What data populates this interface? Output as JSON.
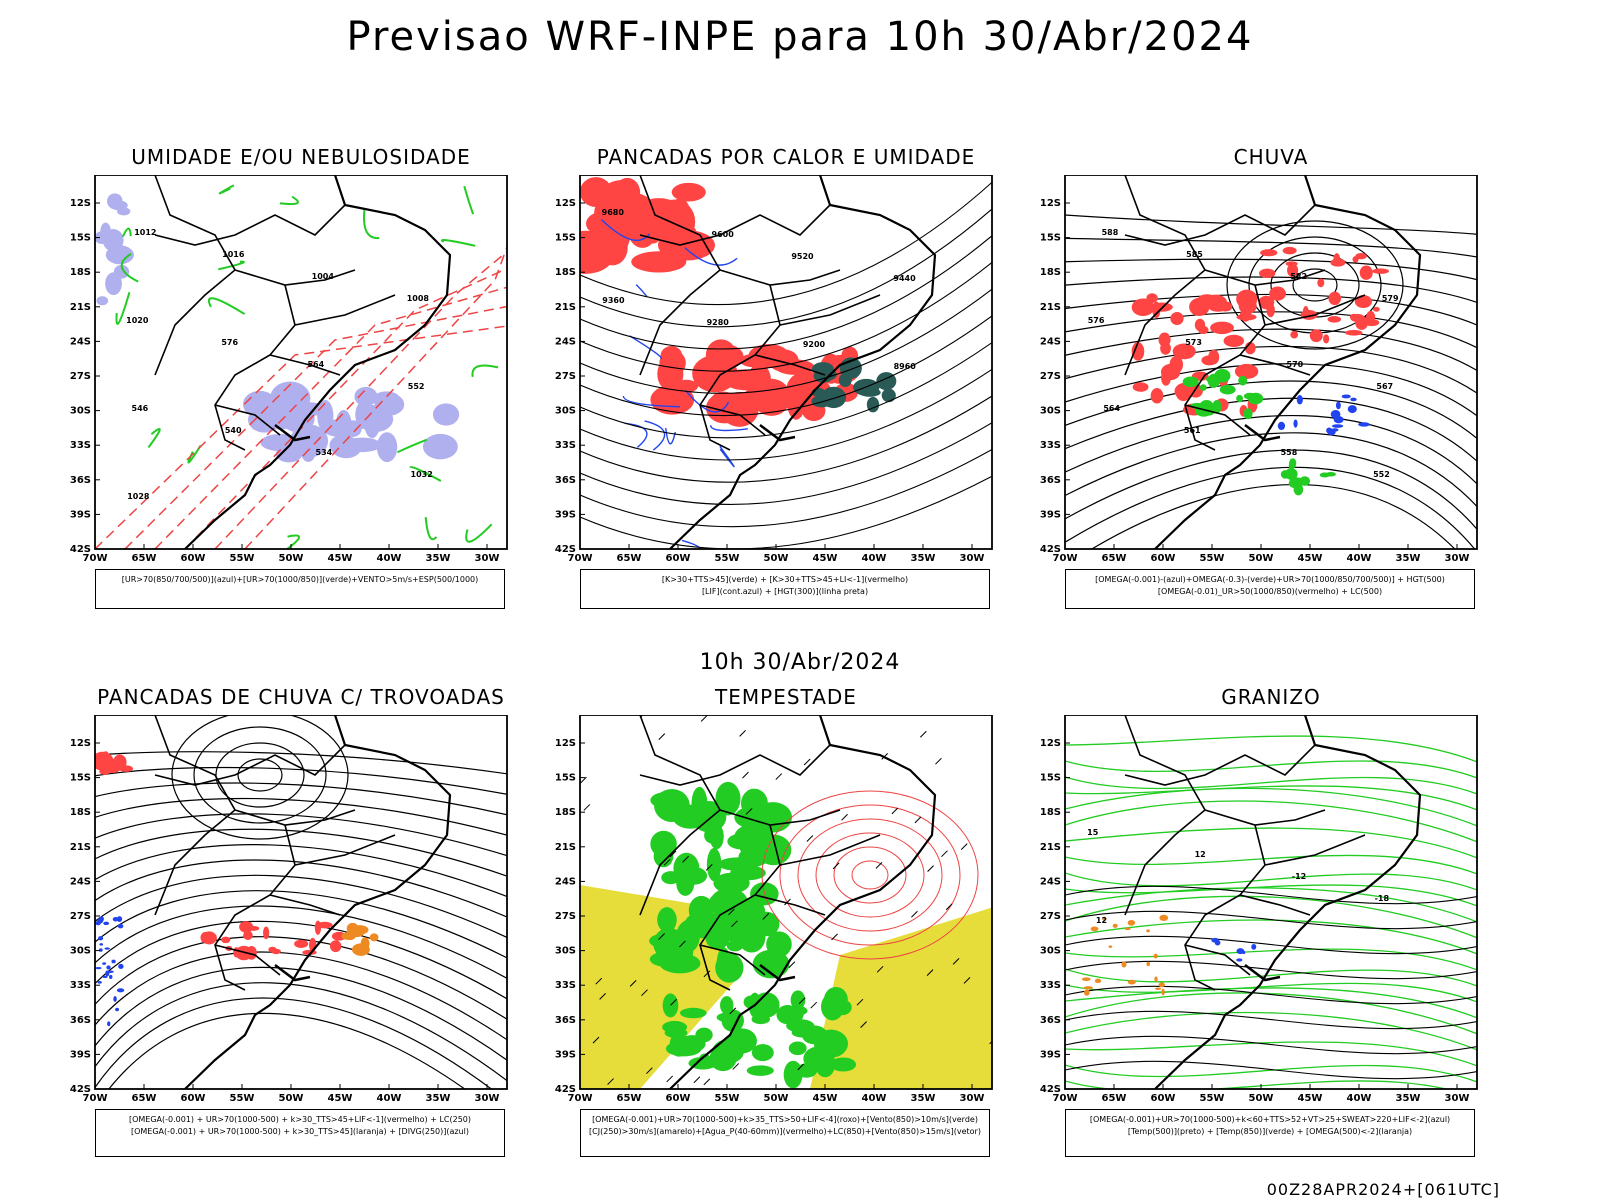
{
  "title": "Previsao WRF-INPE  para 10h 30/Abr/2024",
  "mid_date": "10h 30/Abr/2024",
  "footer": "00Z28APR2024+[061UTC]",
  "axes": {
    "lat_ticks": [
      "12S",
      "15S",
      "18S",
      "21S",
      "24S",
      "27S",
      "30S",
      "33S",
      "36S",
      "39S",
      "42S"
    ],
    "lon_ticks": [
      "70W",
      "65W",
      "60W",
      "55W",
      "50W",
      "45W",
      "40W",
      "35W",
      "30W"
    ]
  },
  "panels": [
    {
      "title": "UMIDADE E/OU NEBULOSIDADE",
      "legend": [
        "[UR>70(850/700/500)](azul)+[UR>70(1000/850)](verde)+VENTO>5m/s+ESP(500/1000)"
      ]
    },
    {
      "title": "PANCADAS POR CALOR E UMIDADE",
      "legend": [
        "[K>30+TTS>45](verde) + [K>30+TTS>45+LI<-1](vermelho)",
        "[LIF](cont.azul) + [HGT(300)](linha preta)"
      ]
    },
    {
      "title": "CHUVA",
      "legend": [
        "[OMEGA(-0.001)-(azul)+OMEGA(-0.3)-(verde)+UR>70(1000/850/700/500)] + HGT(500)",
        "[OMEGA(-0.01)_UR>50(1000/850)(vermelho) + LC(500)"
      ]
    },
    {
      "title": "PANCADAS DE CHUVA C/ TROVOADAS",
      "legend": [
        "[OMEGA(-0.001) + UR>70(1000-500) + k>30_TTS>45+LIF<-1](vermelho) + LC(250)",
        "[OMEGA(-0.001) + UR>70(1000-500) + k>30_TTS>45](laranja) + [DIVG(250)](azul)"
      ]
    },
    {
      "title": "TEMPESTADE",
      "legend": [
        "[OMEGA(-0.001)+UR>70(1000-500)+k>35_TTS>50+LIF<-4](roxo)+[Vento(850)>10m/s](verde)",
        "[CJ(250)>30m/s](amarelo)+[Agua_P(40-60mm)](vermelho)+LC(850)+[Vento(850)>15m/s](vetor)"
      ]
    },
    {
      "title": "GRANIZO",
      "legend": [
        "[OMEGA(-0.001)+UR>70(1000-500)+k<60+TTS>52+VT>25+SWEAT>220+LIF<-2](azul)",
        "[Temp(500)](preto) + [Temp(850)](verde) + [OMEGA(500)<-2](laranja)"
      ]
    }
  ],
  "contour_labels": {
    "p1": [
      "1012",
      "1016",
      "1004",
      "1008",
      "1020",
      "576",
      "564",
      "552",
      "546",
      "540",
      "534",
      "1032",
      "1028"
    ],
    "p2": [
      "9680",
      "9600",
      "9520",
      "9440",
      "9360",
      "9280",
      "9200",
      "8960"
    ],
    "p3": [
      "588",
      "585",
      "582",
      "579",
      "576",
      "573",
      "570",
      "567",
      "564",
      "561",
      "558",
      "552"
    ],
    "p6": [
      "15",
      "12",
      "-12",
      "-18",
      "12"
    ]
  },
  "colors": {
    "green": "#22cc22",
    "red": "#ff4444",
    "blue": "#2244ee",
    "lavender": "#b0b0ee",
    "yellow": "#e6dd3a",
    "orange": "#ee8a22",
    "darkteal": "#2a5a55",
    "contour_red": "#ee4444"
  }
}
